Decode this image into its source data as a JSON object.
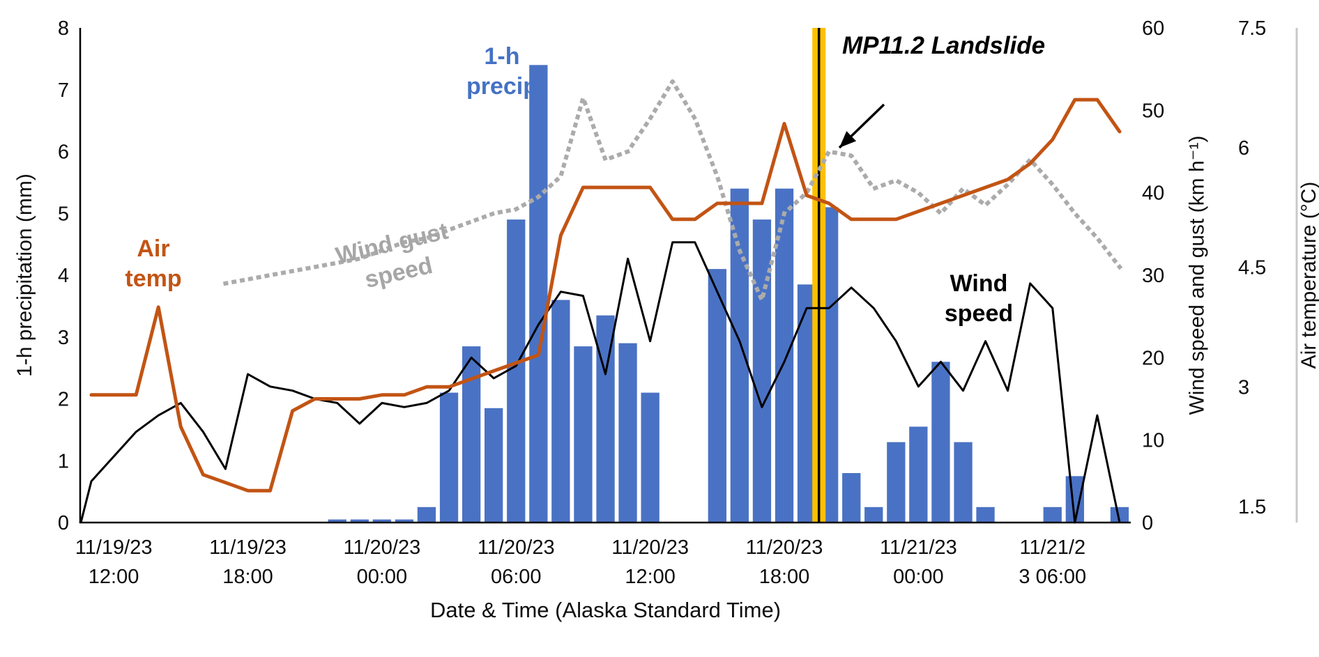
{
  "chart_data": {
    "type": "bar",
    "description": "combo chart: hourly precipitation bars with air temperature, wind speed and wind gust lines",
    "x_axis": {
      "label": "Date & Time (Alaska Standard Time)",
      "n_points": 48,
      "tick_indices": [
        2,
        8,
        14,
        20,
        26,
        32,
        38,
        44
      ],
      "tick_labels": [
        {
          "date": "11/19/23",
          "time": "12:00"
        },
        {
          "date": "11/19/23",
          "time": "18:00"
        },
        {
          "date": "11/20/23",
          "time": "00:00"
        },
        {
          "date": "11/20/23",
          "time": "06:00"
        },
        {
          "date": "11/20/23",
          "time": "12:00"
        },
        {
          "date": "11/20/23",
          "time": "18:00"
        },
        {
          "date": "11/21/23",
          "time": "00:00"
        },
        {
          "date": "11/21/2",
          "time": "3 06:00"
        }
      ]
    },
    "axes": {
      "precip": {
        "label": "1-h precipitation (mm)",
        "min": 0,
        "max": 8,
        "ticks": [
          0,
          1,
          2,
          3,
          4,
          5,
          6,
          7,
          8
        ]
      },
      "wind": {
        "label": "Wind speed and gust (km h⁻¹)",
        "min": 0,
        "max": 60,
        "ticks": [
          0,
          10,
          20,
          30,
          40,
          50,
          60
        ]
      },
      "temp": {
        "label": "Air temperature (°C)",
        "min": 1.3,
        "max": 7.5,
        "ticks": [
          1.5,
          3,
          4.5,
          6,
          7.5
        ]
      }
    },
    "series": [
      {
        "name": "1-h precip",
        "type": "bar",
        "axis": "precip",
        "color": "#4A72C4",
        "values": [
          0,
          0,
          0,
          0,
          0,
          0,
          0,
          0,
          0,
          0,
          0,
          0,
          0.05,
          0.05,
          0.05,
          0.05,
          0.25,
          2.1,
          2.85,
          1.85,
          4.9,
          7.4,
          3.6,
          2.85,
          3.35,
          2.9,
          2.1,
          0,
          0,
          4.1,
          5.4,
          4.9,
          5.4,
          3.85,
          5.1,
          0.8,
          0.25,
          1.3,
          1.55,
          2.6,
          1.3,
          0.25,
          0,
          0,
          0.25,
          0.75,
          0,
          0.25
        ]
      },
      {
        "name": "Air temp",
        "type": "line",
        "axis": "temp",
        "color": "#C25414",
        "values": [
          null,
          2.9,
          2.9,
          2.9,
          4.0,
          2.5,
          1.9,
          1.8,
          1.7,
          1.7,
          2.7,
          2.85,
          2.85,
          2.85,
          2.9,
          2.9,
          3.0,
          3.0,
          3.1,
          3.2,
          3.3,
          3.4,
          4.9,
          5.5,
          5.5,
          5.5,
          5.5,
          5.1,
          5.1,
          5.3,
          5.3,
          5.3,
          6.3,
          5.4,
          5.3,
          5.1,
          5.1,
          5.1,
          5.2,
          5.3,
          5.4,
          5.5,
          5.6,
          5.8,
          6.1,
          6.6,
          6.6,
          6.2
        ]
      },
      {
        "name": "Wind speed",
        "type": "line",
        "axis": "wind",
        "color": "#000000",
        "values": [
          0,
          5,
          8,
          11,
          13,
          14.5,
          11,
          6.5,
          18,
          16.5,
          16,
          15,
          14.5,
          12,
          14.5,
          14,
          14.5,
          16,
          20,
          17.5,
          19,
          24,
          28,
          27.5,
          18,
          32,
          22,
          34,
          34,
          28,
          22,
          14,
          19.5,
          26,
          26,
          28.5,
          26,
          22,
          16.5,
          19.5,
          16,
          22,
          16,
          29,
          26,
          0,
          13,
          0
        ]
      },
      {
        "name": "Wind gust speed",
        "type": "line",
        "style": "dotted",
        "axis": "wind",
        "color": "#ABABAB",
        "values": [
          null,
          null,
          null,
          null,
          null,
          null,
          null,
          29,
          29.5,
          30,
          30.5,
          31,
          31.5,
          32,
          33,
          34,
          34.5,
          35.5,
          36.5,
          37.5,
          38,
          39.5,
          42,
          51.5,
          44,
          45,
          49,
          53.5,
          49,
          42,
          33,
          27,
          37.5,
          40,
          45,
          44.5,
          40.5,
          41.5,
          40,
          37.5,
          40.5,
          38.5,
          41,
          44,
          41,
          37.5,
          34.5,
          31
        ]
      }
    ],
    "annotation": {
      "label": "MP11.2 Landslide",
      "x_index": 33.55,
      "band_width": 19,
      "band_color": "#FFC000",
      "line_color": "#000000"
    },
    "inline_labels": {
      "precip": {
        "text": "1-h\nprecip",
        "color": "#4472C4"
      },
      "temp": {
        "text": "Air\ntemp",
        "color": "#C25414"
      },
      "gust": {
        "text": "Wind gust\nspeed",
        "color": "#A6A6A6"
      },
      "wind": {
        "text": "Wind\nspeed",
        "color": "#000000"
      }
    },
    "layout": {
      "grid": false,
      "legend": "inline labels",
      "background": "#ffffff",
      "temp_spine_color": "#C9C9C9"
    }
  }
}
